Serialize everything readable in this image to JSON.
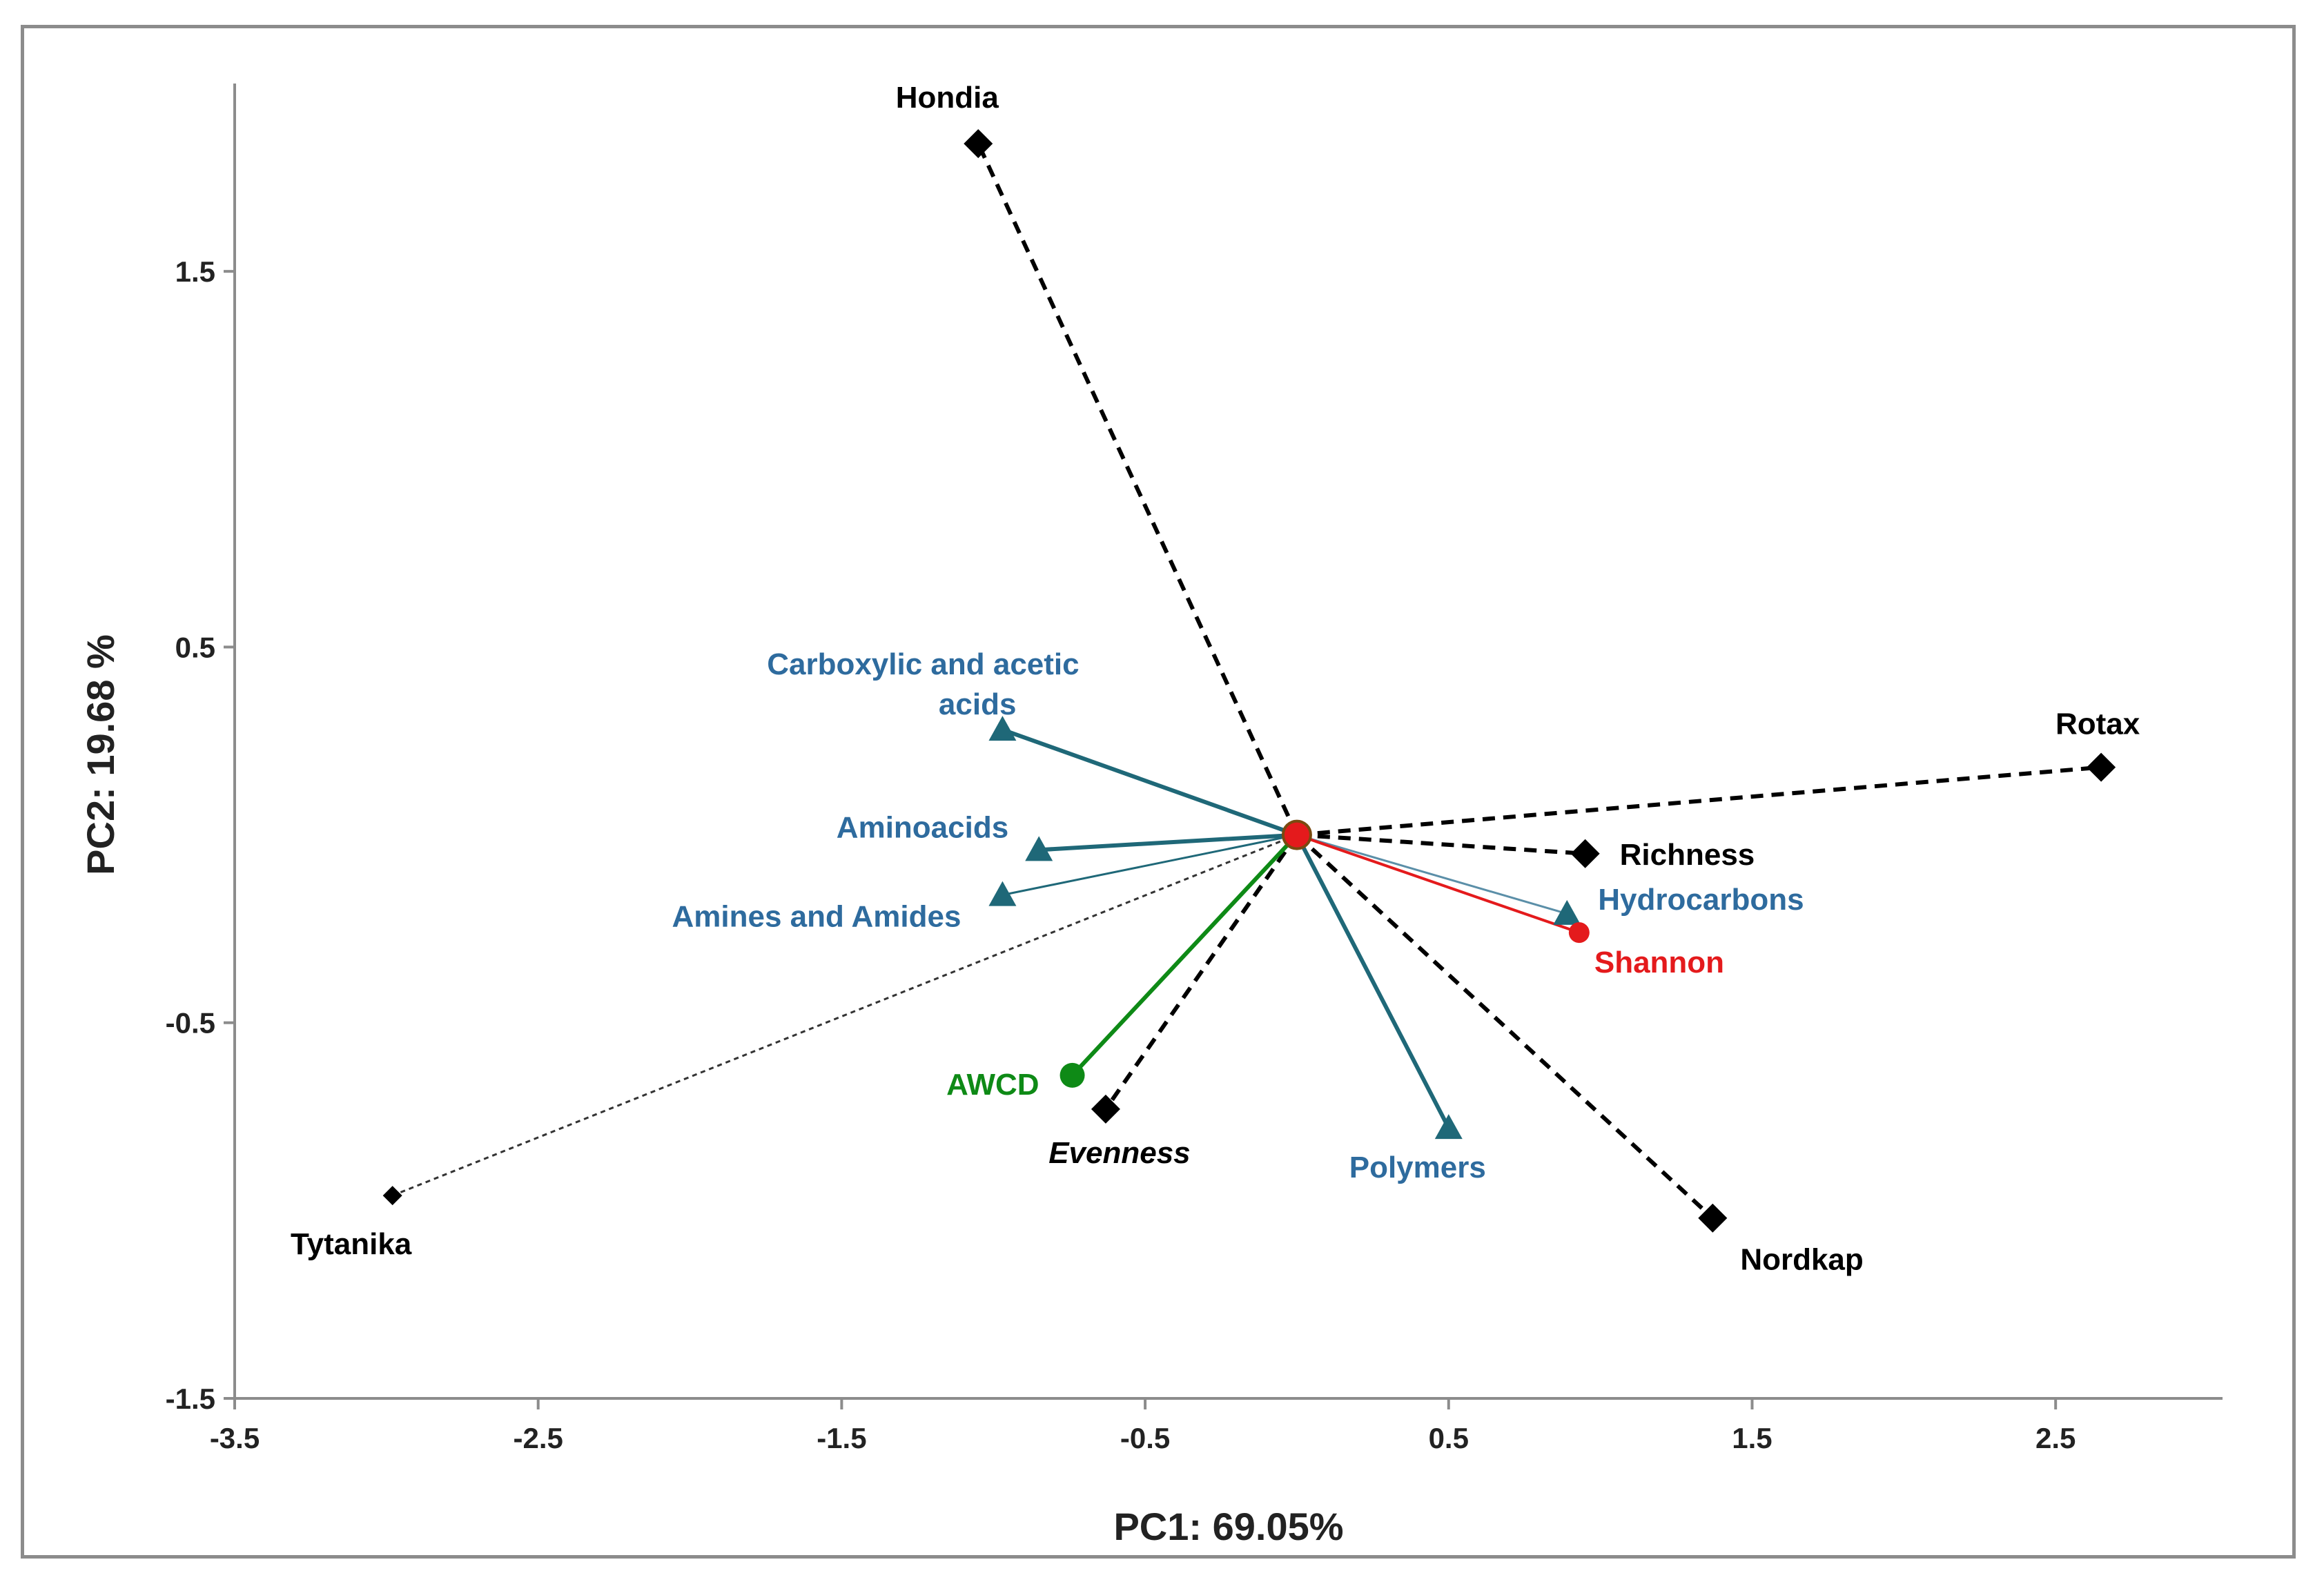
{
  "chart_data": {
    "type": "scatter",
    "subtype": "pca-biplot",
    "title": "",
    "xlabel": "PC1: 69.05%",
    "ylabel": "PC2: 19.68 %",
    "xlim": [
      -3.5,
      3.05
    ],
    "ylim": [
      -1.5,
      2.0
    ],
    "xticks": [
      -3.5,
      -2.5,
      -1.5,
      -0.5,
      0.5,
      1.5,
      2.5
    ],
    "yticks": [
      -1.5,
      -0.5,
      0.5,
      1.5
    ],
    "xtick_labels": [
      "-3.5",
      "-2.5",
      "-1.5",
      "-0.5",
      "0.5",
      "1.5",
      "2.5"
    ],
    "ytick_labels": [
      "-1.5",
      "-0.5",
      "0.5",
      "1.5"
    ],
    "grid": false,
    "origin": [
      0.0,
      0.0
    ],
    "series": [
      {
        "name": "Sites",
        "marker": "diamond",
        "color": "#000000",
        "points": [
          {
            "label": "Hondia",
            "x": -1.05,
            "y": 1.84,
            "line": "dashed"
          },
          {
            "label": "Rotax",
            "x": 2.65,
            "y": 0.18,
            "line": "dashed"
          },
          {
            "label": "Richness",
            "x": 0.95,
            "y": -0.05,
            "line": "dashed"
          },
          {
            "label": "Nordkap",
            "x": 1.37,
            "y": -1.02,
            "line": "dashed"
          },
          {
            "label": "Evenness",
            "x": -0.63,
            "y": -0.73,
            "line": "dashed"
          },
          {
            "label": "Tytanika",
            "x": -2.98,
            "y": -0.96,
            "line": "dotted"
          }
        ]
      },
      {
        "name": "Substrate groups",
        "marker": "triangle",
        "color": "#1f6878",
        "label_color": "#2e6b9e",
        "points": [
          {
            "label": "Carboxylic and acetic acids",
            "label_lines": [
              "Carboxylic  and acetic",
              "acids"
            ],
            "x": -0.97,
            "y": 0.28
          },
          {
            "label": "Aminoacids",
            "x": -0.85,
            "y": -0.04
          },
          {
            "label": "Amines  and Amides",
            "x": -0.97,
            "y": -0.16
          },
          {
            "label": "Hydrocarbons",
            "x": 0.89,
            "y": -0.21
          },
          {
            "label": "Polymers",
            "x": 0.5,
            "y": -0.78
          }
        ]
      },
      {
        "name": "AWCD",
        "marker": "circle",
        "color": "#0e8a16",
        "points": [
          {
            "label": "AWCD",
            "x": -0.74,
            "y": -0.64
          }
        ]
      },
      {
        "name": "Shannon",
        "marker": "circle",
        "color": "#e41a1c",
        "points": [
          {
            "label": "Shannon",
            "x": 0.93,
            "y": -0.26
          }
        ]
      }
    ]
  }
}
